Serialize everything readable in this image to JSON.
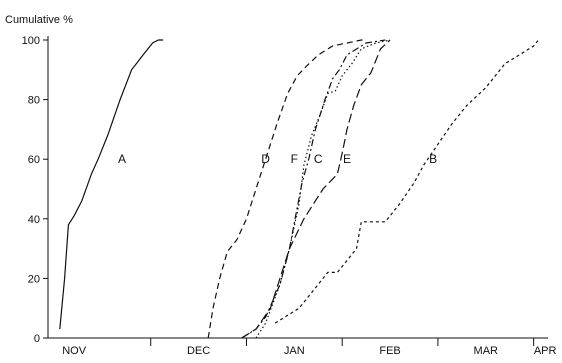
{
  "chart_data": {
    "type": "line",
    "title": "",
    "ylabel": "Cumulative %",
    "xlabel": "",
    "ylim": [
      0,
      100
    ],
    "yticks": [
      0,
      20,
      40,
      60,
      80,
      100
    ],
    "xlim": [
      0,
      5.15
    ],
    "months": [
      "NOV",
      "DEC",
      "JAN",
      "FEB",
      "MAR",
      "APR"
    ],
    "grid": false,
    "legend": "none (curves labelled inline)",
    "color": "#111111",
    "series": [
      {
        "name": "A",
        "dash": "solid",
        "x": [
          0.05,
          0.1,
          0.14,
          0.2,
          0.28,
          0.38,
          0.45,
          0.55,
          0.68,
          0.8,
          0.92,
          1.02,
          1.08,
          1.13
        ],
        "y": [
          3,
          20,
          38,
          41,
          46,
          55,
          60,
          68,
          80,
          90,
          95,
          99,
          100,
          100
        ],
        "label_at": [
          0.7,
          60
        ]
      },
      {
        "name": "D",
        "dash": "dashed",
        "x": [
          1.6,
          1.65,
          1.72,
          1.8,
          1.9,
          2.0,
          2.1,
          2.2,
          2.32,
          2.43,
          2.53,
          2.62,
          2.75,
          2.9,
          3.05,
          3.2,
          3.25
        ],
        "y": [
          0,
          10,
          20,
          29,
          33,
          40,
          50,
          60,
          72,
          82,
          88,
          91,
          95,
          98,
          99,
          100,
          100
        ],
        "label_at": [
          2.2,
          60
        ]
      },
      {
        "name": "F",
        "dash": "dash-dot",
        "x": [
          1.95,
          2.1,
          2.2,
          2.35,
          2.45,
          2.52,
          2.58,
          2.65,
          2.72,
          2.82,
          2.9,
          2.97,
          3.05,
          3.25,
          3.45
        ],
        "y": [
          0,
          3,
          7,
          18,
          30,
          42,
          52,
          60,
          70,
          80,
          87,
          90,
          95,
          99,
          100
        ],
        "label_at": [
          2.5,
          60
        ]
      },
      {
        "name": "C",
        "dash": "dotted",
        "x": [
          2.1,
          2.2,
          2.35,
          2.45,
          2.55,
          2.6,
          2.68,
          2.77,
          2.85,
          2.93,
          3.0,
          3.1,
          3.2,
          3.35,
          3.5
        ],
        "y": [
          0,
          5,
          18,
          30,
          45,
          58,
          68,
          75,
          82,
          83,
          88,
          92,
          97,
          99,
          100
        ],
        "label_at": [
          2.75,
          60
        ]
      },
      {
        "name": "E",
        "dash": "long-dash",
        "x": [
          1.95,
          2.1,
          2.25,
          2.45,
          2.6,
          2.8,
          2.95,
          3.0,
          3.05,
          3.12,
          3.2,
          3.3,
          3.4,
          3.5
        ],
        "y": [
          0,
          3,
          10,
          30,
          40,
          50,
          55,
          62,
          70,
          78,
          85,
          89,
          97,
          100
        ],
        "label_at": [
          3.05,
          60
        ]
      },
      {
        "name": "B",
        "dash": "short-dash",
        "x": [
          2.3,
          2.55,
          2.7,
          2.85,
          2.95,
          3.05,
          3.15,
          3.2,
          3.45,
          3.6,
          3.75,
          3.85,
          4.0,
          4.15,
          4.3,
          4.5,
          4.7,
          4.85,
          5.0,
          5.05
        ],
        "y": [
          5,
          10,
          16,
          22,
          22,
          26,
          30,
          39,
          39,
          45,
          52,
          58,
          65,
          72,
          78,
          84,
          92,
          95,
          98,
          100
        ],
        "label_at": [
          3.95,
          60
        ]
      }
    ]
  }
}
